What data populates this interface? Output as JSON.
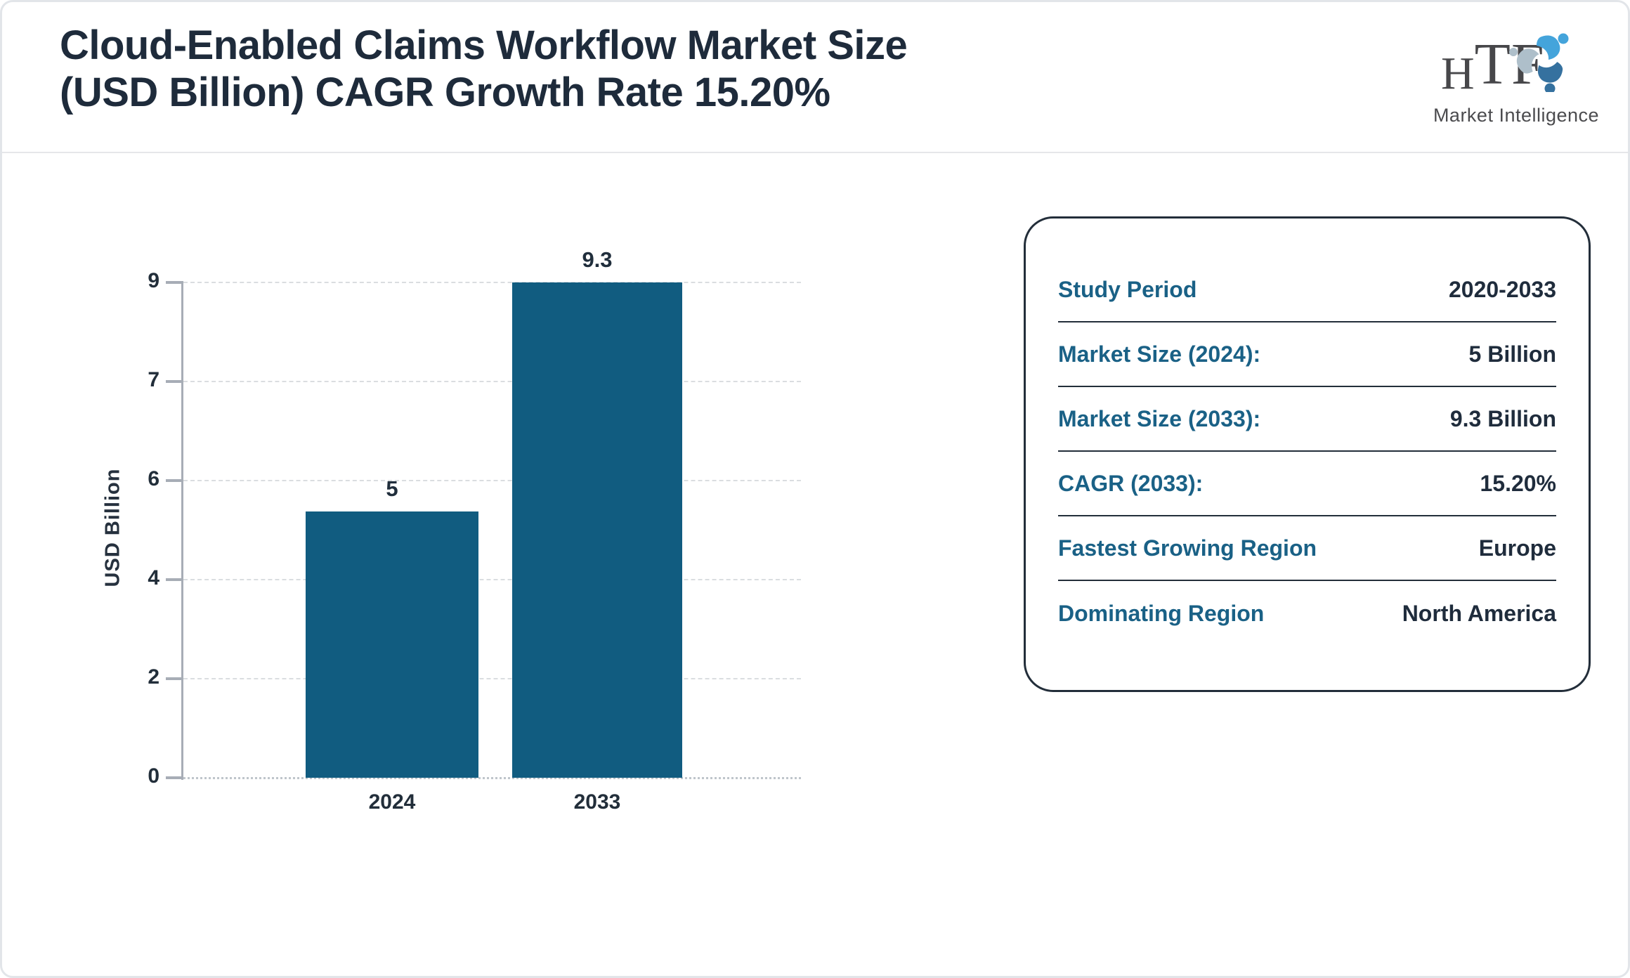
{
  "page": {
    "title_line1": "Cloud-Enabled Claims Workflow Market Size",
    "title_line2": "(USD Billion) CAGR Growth Rate 15.20%"
  },
  "logo": {
    "text_h": "H",
    "text_tf": "TF",
    "subtext": "Market Intelligence",
    "icon_colors": {
      "blue": "#44a4db",
      "steel": "#35719f",
      "gray": "#aebfca"
    }
  },
  "chart_data": {
    "type": "bar",
    "title": "Cloud-Enabled Claims Workflow Market Size (USD Billion) CAGR Growth Rate 15.20%",
    "categories": [
      "2024",
      "2033"
    ],
    "values": [
      5,
      9.3
    ],
    "value_labels": [
      "5",
      "9.3"
    ],
    "ylabel": "USD Billion",
    "xlabel": "",
    "ylim": [
      0,
      9.3
    ],
    "ytick_labels_top_to_bottom": [
      "9",
      "7",
      "6",
      "4",
      "2",
      "0"
    ],
    "grid": "horizontal-dashed",
    "legend": "none",
    "bar_color": "#115c80"
  },
  "info_card": {
    "label_color": "#1a6186",
    "value_color": "#1f2c3c",
    "rows": [
      {
        "label": "Study Period",
        "value": "2020-2033"
      },
      {
        "label": "Market Size (2024):",
        "value": "5 Billion"
      },
      {
        "label": "Market Size (2033):",
        "value": "9.3 Billion"
      },
      {
        "label": "CAGR (2033):",
        "value": "15.20%"
      },
      {
        "label": "Fastest Growing Region",
        "value": "Europe"
      },
      {
        "label": "Dominating Region",
        "value": "North America"
      }
    ]
  }
}
